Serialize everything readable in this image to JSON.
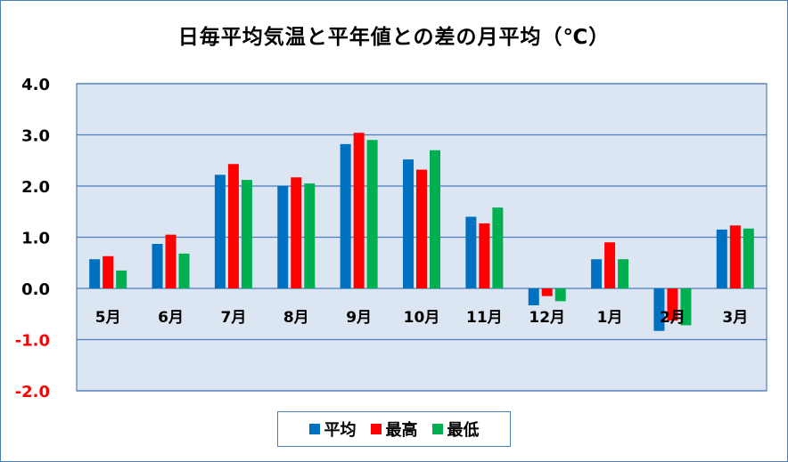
{
  "chart_data": {
    "type": "bar",
    "title": "日毎平均気温と平年値との差の月平均（℃）",
    "categories": [
      "5月",
      "6月",
      "7月",
      "8月",
      "9月",
      "10月",
      "11月",
      "12月",
      "1月",
      "2月",
      "3月"
    ],
    "series": [
      {
        "name": "平均",
        "color": "#0070c0",
        "values": [
          0.57,
          0.87,
          2.22,
          2.0,
          2.82,
          2.52,
          1.4,
          -0.33,
          0.57,
          -0.83,
          1.15
        ]
      },
      {
        "name": "最高",
        "color": "#ff0000",
        "values": [
          0.63,
          1.05,
          2.43,
          2.17,
          3.04,
          2.32,
          1.27,
          -0.15,
          0.9,
          -0.63,
          1.23
        ]
      },
      {
        "name": "最低",
        "color": "#00b050",
        "values": [
          0.35,
          0.68,
          2.12,
          2.05,
          2.9,
          2.7,
          1.58,
          -0.25,
          0.57,
          -0.72,
          1.17
        ]
      }
    ],
    "ylim": [
      -2.0,
      4.0
    ],
    "yticks": [
      "4.0",
      "3.0",
      "2.0",
      "1.0",
      "0.0",
      "-1.0",
      "-2.0"
    ],
    "ytick_values": [
      4,
      3,
      2,
      1,
      0,
      -1,
      -2
    ],
    "grid": true,
    "legend": "bottom",
    "colors": {
      "negative_tick": "#ff0000",
      "plot_bg": "#dce6f2",
      "grid": "#4a7ebb"
    }
  }
}
